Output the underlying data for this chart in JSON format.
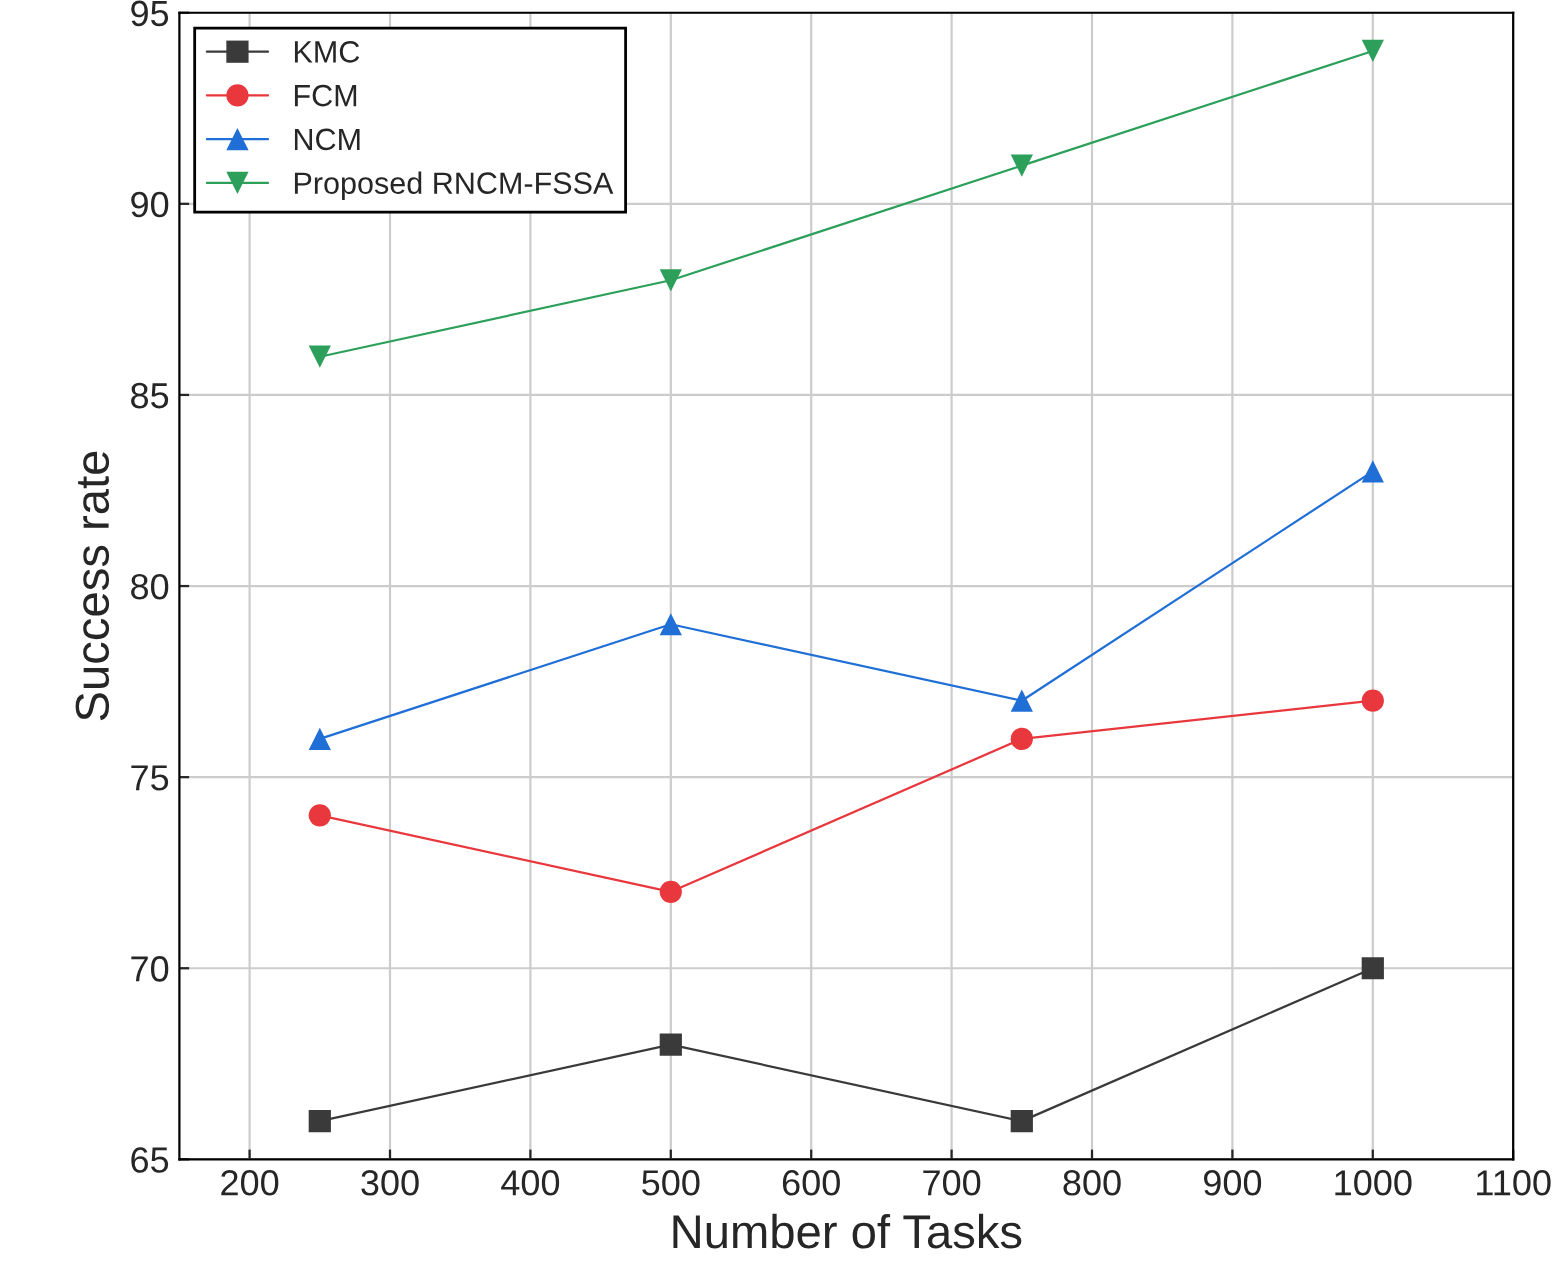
{
  "chart_data": {
    "type": "line",
    "xlabel": "Number of Tasks",
    "ylabel": "Success rate",
    "x": [
      250,
      500,
      750,
      1000
    ],
    "series": [
      {
        "name": "KMC",
        "color": "#3a3a3a",
        "values": [
          66,
          68,
          66,
          70
        ],
        "marker": "square"
      },
      {
        "name": "FCM",
        "color": "#e8383d",
        "values": [
          74,
          72,
          76,
          77
        ],
        "marker": "circle"
      },
      {
        "name": "NCM",
        "color": "#1f6fd6",
        "values": [
          76,
          79,
          77,
          83
        ],
        "marker": "triangle"
      },
      {
        "name": "Proposed RNCM-FSSA",
        "color": "#2ca05a",
        "values": [
          86,
          88,
          91,
          94
        ],
        "marker": "triangle_down"
      }
    ],
    "xlim": [
      150,
      1100
    ],
    "xticks": [
      200,
      300,
      400,
      500,
      600,
      700,
      800,
      900,
      1000,
      1100
    ],
    "ylim": [
      65,
      95
    ],
    "yticks": [
      65,
      70,
      75,
      80,
      85,
      90,
      95
    ],
    "grid": true,
    "legend": "top left",
    "line_style": "solid"
  }
}
